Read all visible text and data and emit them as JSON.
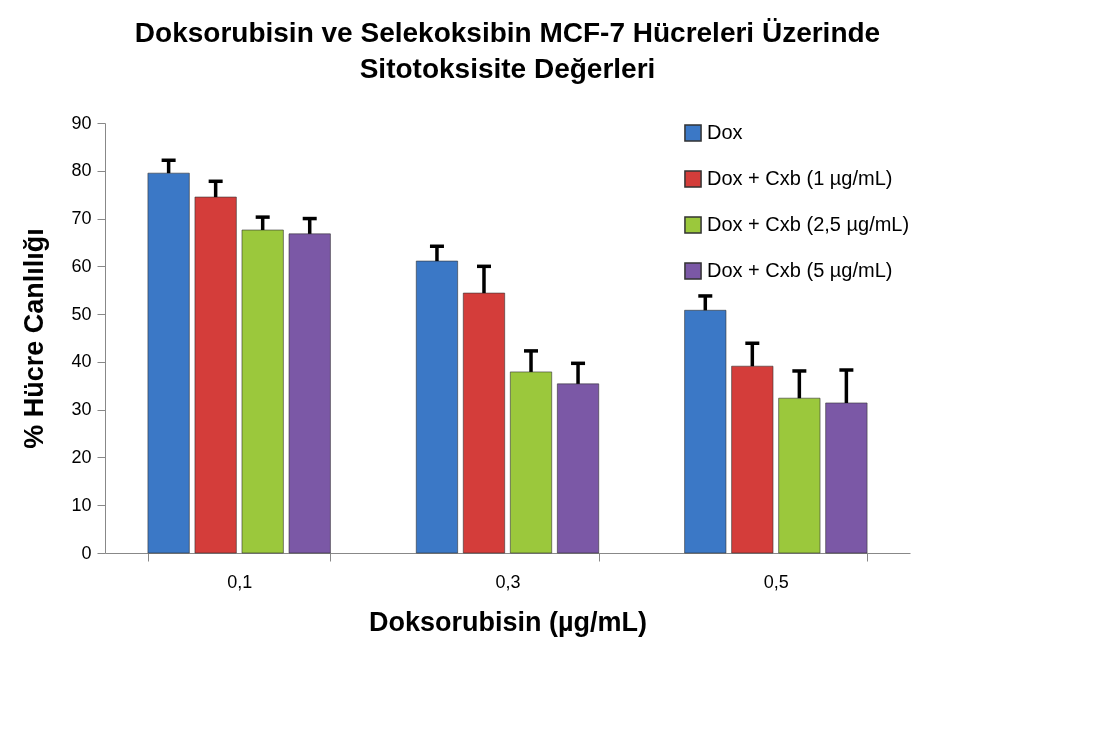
{
  "chart_data": {
    "type": "bar",
    "title": "Doksorubisin ve Selekoksibin MCF-7 Hücreleri Üzerinde Sitotoksisite Değerleri",
    "xlabel": "Doksorubisin (µg/mL)",
    "ylabel": "% Hücre Canlılığı",
    "categories": [
      "0,1",
      "0,3",
      "0,5"
    ],
    "series": [
      {
        "name": "Dox",
        "color": "#3b78c6",
        "values": [
          79.5,
          61.1,
          50.8
        ],
        "errors": [
          [
            79.5,
            82.2
          ],
          [
            61.1,
            64.2
          ],
          [
            50.8,
            53.8
          ]
        ]
      },
      {
        "name": "Dox + Cxb (1 µg/mL)",
        "color": "#d43d3a",
        "values": [
          74.5,
          54.4,
          39.1
        ],
        "errors": [
          [
            74.5,
            77.8
          ],
          [
            54.4,
            60.0
          ],
          [
            39.1,
            43.9
          ]
        ]
      },
      {
        "name": "Dox + Cxb (2,5 µg/mL)",
        "color": "#9bc83c",
        "values": [
          67.6,
          37.9,
          32.4
        ],
        "errors": [
          [
            67.6,
            70.3
          ],
          [
            37.9,
            42.3
          ],
          [
            32.4,
            38.1
          ]
        ]
      },
      {
        "name": "Dox + Cxb (5 µg/mL)",
        "color": "#7b58a6",
        "values": [
          66.8,
          35.4,
          31.4
        ],
        "errors": [
          [
            66.8,
            70.0
          ],
          [
            35.4,
            39.7
          ],
          [
            31.4,
            38.3
          ]
        ]
      }
    ],
    "ylim": [
      0,
      90
    ],
    "yticks": [
      0,
      10,
      20,
      30,
      40,
      50,
      60,
      70,
      80,
      90
    ],
    "grid": false,
    "legend": "top right"
  }
}
